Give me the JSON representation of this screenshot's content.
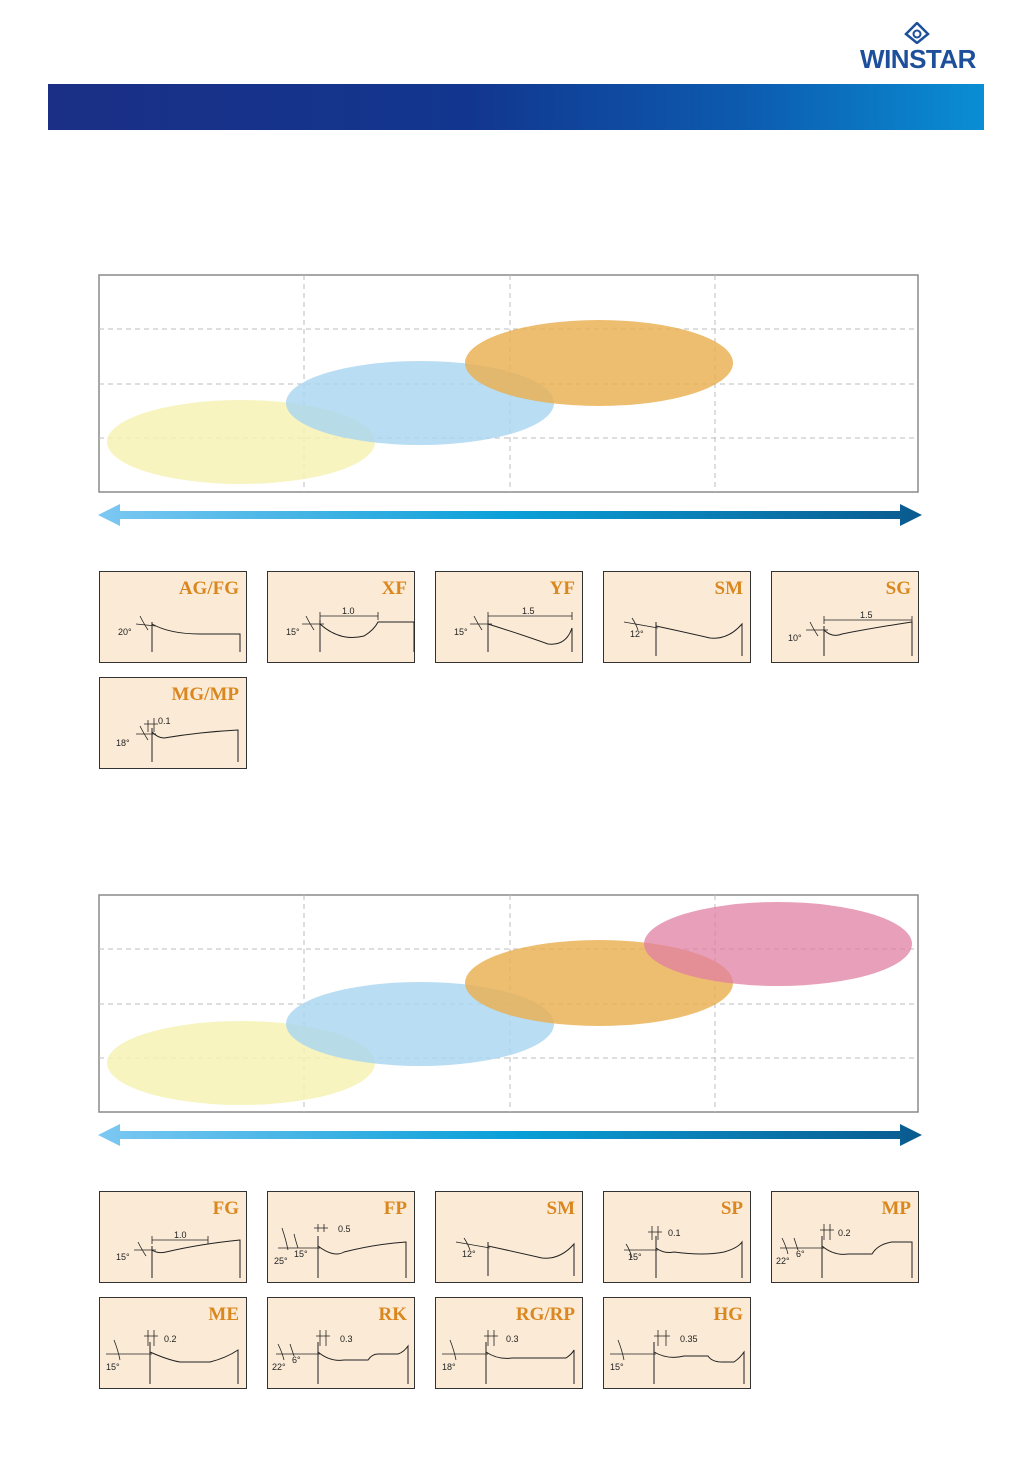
{
  "brand": {
    "name": "WINSTAR"
  },
  "colors": {
    "header_start": "#1b2f86",
    "header_end": "#0a8ed4",
    "ellipse_yellow": "#f6f2b4",
    "ellipse_blue": "#a9d5f0",
    "ellipse_orange": "#eab050",
    "ellipse_pink": "#e07fa2",
    "card_bg": "#fbebd6",
    "card_label": "#d9871e"
  },
  "chartbreakers_group1": [
    {
      "name": "AG/FG",
      "dim": "",
      "angles": [
        "20°"
      ]
    },
    {
      "name": "XF",
      "dim": "1.0",
      "angles": [
        "15°"
      ]
    },
    {
      "name": "YF",
      "dim": "1.5",
      "angles": [
        "15°"
      ]
    },
    {
      "name": "SM",
      "dim": "",
      "angles": [
        "12°"
      ]
    },
    {
      "name": "SG",
      "dim": "1.5",
      "angles": [
        "10°"
      ]
    },
    {
      "name": "MG/MP",
      "dim": "0.1",
      "angles": [
        "18°"
      ]
    }
  ],
  "chartbreakers_group2": [
    {
      "name": "FG",
      "dim": "1.0",
      "angles": [
        "15°"
      ]
    },
    {
      "name": "FP",
      "dim": "0.5",
      "angles": [
        "25°",
        "15°"
      ]
    },
    {
      "name": "SM",
      "dim": "",
      "angles": [
        "12°"
      ]
    },
    {
      "name": "SP",
      "dim": "0.1",
      "angles": [
        "15°"
      ]
    },
    {
      "name": "MP",
      "dim": "0.2",
      "angles": [
        "22°",
        "6°"
      ]
    },
    {
      "name": "ME",
      "dim": "0.2",
      "angles": [
        "15°"
      ]
    },
    {
      "name": "RK",
      "dim": "0.3",
      "angles": [
        "22°",
        "6°"
      ]
    },
    {
      "name": "RG/RP",
      "dim": "0.3",
      "angles": [
        "18°"
      ]
    },
    {
      "name": "HG",
      "dim": "0.35",
      "angles": [
        "15°"
      ]
    }
  ],
  "chart_data": [
    {
      "type": "area",
      "series": [
        {
          "color": "#f6f2b4"
        },
        {
          "color": "#a9d5f0"
        },
        {
          "color": "#eab050"
        }
      ]
    },
    {
      "type": "area",
      "series": [
        {
          "color": "#f6f2b4"
        },
        {
          "color": "#a9d5f0"
        },
        {
          "color": "#eab050"
        },
        {
          "color": "#e07fa2"
        }
      ]
    }
  ]
}
